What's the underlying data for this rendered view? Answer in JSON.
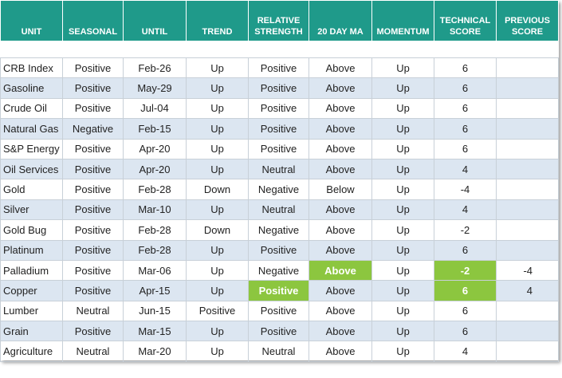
{
  "table": {
    "header": [
      "UNIT",
      "SEASONAL",
      "UNTIL",
      "TREND",
      "RELATIVE STRENGTH",
      "20 DAY MA",
      "MOMENTUM",
      "TECHNICAL SCORE",
      "PREVIOUS SCORE"
    ],
    "rows": [
      [
        "CRB Index",
        "Positive",
        "Feb-26",
        "Up",
        "Positive",
        "Above",
        "Up",
        6,
        null
      ],
      [
        "Gasoline",
        "Positive",
        "May-29",
        "Up",
        "Positive",
        "Above",
        "Up",
        6,
        null
      ],
      [
        "Crude Oil",
        "Positive",
        "Jul-04",
        "Up",
        "Positive",
        "Above",
        "Up",
        6,
        null
      ],
      [
        "Natural Gas",
        "Negative",
        "Feb-15",
        "Up",
        "Positive",
        "Above",
        "Up",
        6,
        null
      ],
      [
        "S&P Energy",
        "Positive",
        "Apr-20",
        "Up",
        "Positive",
        "Above",
        "Up",
        6,
        null
      ],
      [
        "Oil Services",
        "Positive",
        "Apr-20",
        "Up",
        "Neutral",
        "Above",
        "Up",
        4,
        null
      ],
      [
        "Gold",
        "Positive",
        "Feb-28",
        "Down",
        "Negative",
        "Below",
        "Up",
        -4,
        null
      ],
      [
        "Silver",
        "Positive",
        "Mar-10",
        "Up",
        "Neutral",
        "Above",
        "Up",
        4,
        null
      ],
      [
        "Gold Bug",
        "Positive",
        "Feb-28",
        "Down",
        "Negative",
        "Above",
        "Up",
        -2,
        null
      ],
      [
        "Platinum",
        "Positive",
        "Feb-28",
        "Up",
        "Positive",
        "Above",
        "Up",
        6,
        null
      ],
      [
        "Palladium",
        "Positive",
        "Mar-06",
        "Up",
        "Negative",
        "Above",
        "Up",
        -2,
        -4
      ],
      [
        "Copper",
        "Positive",
        "Apr-15",
        "Up",
        "Positive",
        "Above",
        "Up",
        6,
        4
      ],
      [
        "Lumber",
        "Neutral",
        "Jun-15",
        "Positive",
        "Positive",
        "Above",
        "Up",
        6,
        null
      ],
      [
        "Grain",
        "Positive",
        "Mar-15",
        "Up",
        "Positive",
        "Above",
        "Up",
        6,
        null
      ],
      [
        "Agriculture",
        "Neutral",
        "Mar-20",
        "Up",
        "Neutral",
        "Above",
        "Up",
        4,
        null
      ]
    ]
  }
}
